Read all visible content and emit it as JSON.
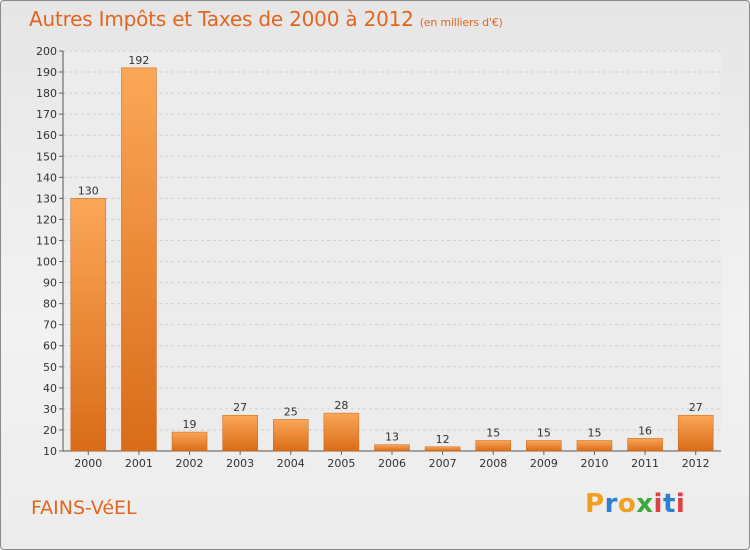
{
  "chart_data": {
    "type": "bar",
    "title": "Autres Impôts et Taxes de 2000 à 2012",
    "subtitle": "(en milliers d'€)",
    "categories": [
      "2000",
      "2001",
      "2002",
      "2003",
      "2004",
      "2005",
      "2006",
      "2007",
      "2008",
      "2009",
      "2010",
      "2011",
      "2012"
    ],
    "values": [
      130,
      192,
      19,
      27,
      25,
      28,
      13,
      12,
      15,
      15,
      15,
      16,
      27
    ],
    "ylim": [
      10,
      200
    ],
    "yticks": [
      10,
      20,
      30,
      40,
      50,
      60,
      70,
      80,
      90,
      100,
      110,
      120,
      130,
      140,
      150,
      160,
      170,
      180,
      190,
      200
    ],
    "grid": true,
    "bar_color": "#e98a3c",
    "xlabel": "",
    "ylabel": ""
  },
  "commune": "FAINS-VéEL",
  "logo": {
    "letters": [
      "P",
      "r",
      "o",
      "x",
      "i",
      "t",
      "i"
    ],
    "colors": [
      "#f0a020",
      "#2f7fd0",
      "#f0a020",
      "#3aa83a",
      "#e04040",
      "#2f7fd0",
      "#e04040"
    ]
  }
}
